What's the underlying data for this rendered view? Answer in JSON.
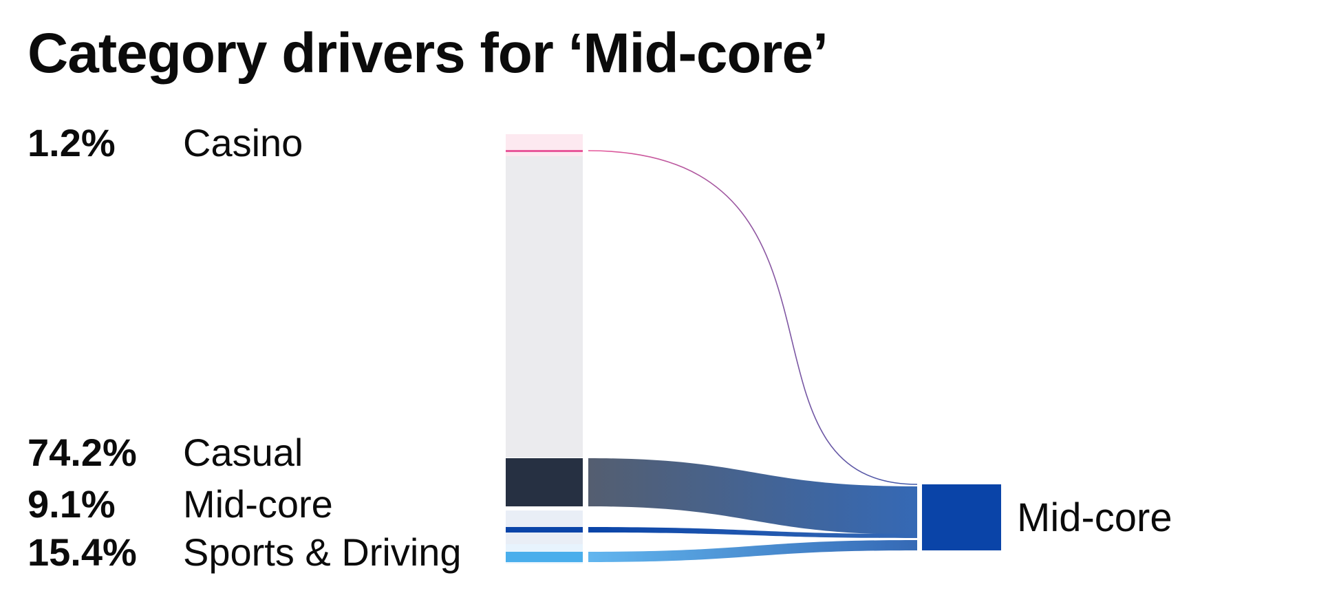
{
  "title": "Category drivers for ‘Mid-core’",
  "chart_data": {
    "type": "sankey",
    "title": "Category drivers for ‘Mid-core’",
    "target": "Mid-core",
    "sources": [
      {
        "label": "Casino",
        "value_text": "1.2%",
        "value": 1.2,
        "color": "#e8579a",
        "dim_color": "#fde9f0"
      },
      {
        "label": "Casual",
        "value_text": "74.2%",
        "value": 74.2,
        "color": "#263042",
        "dim_color": "#ebebee"
      },
      {
        "label": "Mid-core",
        "value_text": "9.1%",
        "value": 9.1,
        "color": "#0a44a8",
        "dim_color": "#e9eef6"
      },
      {
        "label": "Sports & Driving",
        "value_text": "15.4%",
        "value": 15.4,
        "color": "#4aaeec",
        "dim_color": "#e7f3fd"
      }
    ],
    "target_color": "#0a44a8"
  }
}
